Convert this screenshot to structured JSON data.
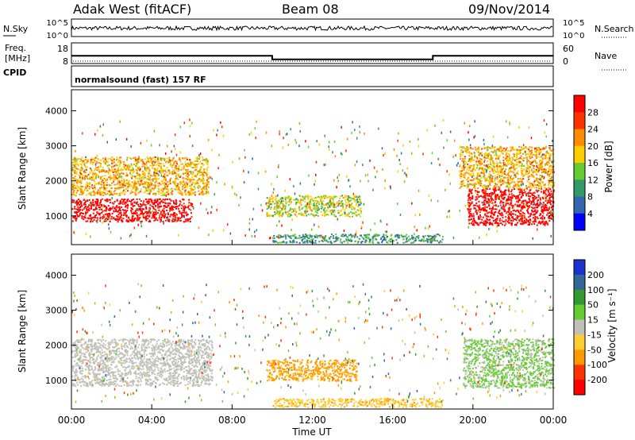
{
  "header": {
    "station": "Adak West (fitACF)",
    "beam": "Beam 08",
    "date": "09/Nov/2014"
  },
  "top_panels": {
    "nsky_label": "N.Sky",
    "nsearch_label": "N.Search",
    "noise_ticks": [
      "10^5",
      "10^0"
    ],
    "freq_label": "Freq.",
    "freq_unit": "[MHz]",
    "freq_ticks": [
      "18",
      "8"
    ],
    "nave_label": "Nave",
    "nave_ticks": [
      "60",
      "0"
    ],
    "cpid_label": "CPID",
    "cpid_text": "normalsound (fast) 157 RF",
    "freq_steps": [
      {
        "from": 0,
        "to": 10,
        "mhz": 12.5
      },
      {
        "from": 10,
        "to": 18,
        "mhz": 10.8
      },
      {
        "from": 18,
        "to": 24,
        "mhz": 12.5
      }
    ]
  },
  "chart_data": [
    {
      "type": "heatmap",
      "name": "Power",
      "ylabel": "Slant Range [km]",
      "xlabel": "Time UT",
      "xlim": [
        0,
        24
      ],
      "ylim": [
        180,
        4600
      ],
      "xticks": [
        "00:00",
        "04:00",
        "08:00",
        "12:00",
        "16:00",
        "20:00",
        "00:00"
      ],
      "yticks": [
        "1000",
        "2000",
        "3000",
        "4000"
      ],
      "colorbar_label": "Power [dB]",
      "colorbar_ticks": [
        "28",
        "24",
        "20",
        "16",
        "12",
        "8",
        "4"
      ],
      "colors": [
        "#ff0000",
        "#ff3300",
        "#ff8c00",
        "#ffcc00",
        "#66cc33",
        "#339966",
        "#3366aa",
        "#0000ff"
      ],
      "regions": [
        {
          "t0": 0,
          "t1": 6.0,
          "r0": 850,
          "r1": 1500,
          "value": 30
        },
        {
          "t0": 0,
          "t1": 6.8,
          "r0": 1600,
          "r1": 2700,
          "value": 18
        },
        {
          "t0": 9.7,
          "t1": 14.4,
          "r0": 1000,
          "r1": 1600,
          "value": 14
        },
        {
          "t0": 10.0,
          "t1": 18.5,
          "r0": 250,
          "r1": 500,
          "value": 8
        },
        {
          "t0": 19.7,
          "t1": 24,
          "r0": 750,
          "r1": 1800,
          "value": 30
        },
        {
          "t0": 19.3,
          "t1": 24,
          "r0": 1800,
          "r1": 3000,
          "value": 18
        }
      ]
    },
    {
      "type": "heatmap",
      "name": "Velocity",
      "ylabel": "Slant Range [km]",
      "xlabel": "Time UT",
      "xlim": [
        0,
        24
      ],
      "ylim": [
        180,
        4600
      ],
      "xticks": [
        "00:00",
        "04:00",
        "08:00",
        "12:00",
        "16:00",
        "20:00",
        "00:00"
      ],
      "yticks": [
        "1000",
        "2000",
        "3000",
        "4000"
      ],
      "colorbar_label": "Velocity [m s⁻¹]",
      "colorbar_ticks": [
        "200",
        "100",
        "50",
        "15",
        "-15",
        "-50",
        "-100",
        "-200"
      ],
      "colors": [
        "#1a33cc",
        "#336699",
        "#339933",
        "#66cc33",
        "#c0c0b8",
        "#ffcc33",
        "#ff9900",
        "#ff3300",
        "#ff0000"
      ],
      "regions": [
        {
          "t0": 0,
          "t1": 7.0,
          "r0": 850,
          "r1": 2200,
          "value": 0
        },
        {
          "t0": 9.7,
          "t1": 14.2,
          "r0": 1000,
          "r1": 1600,
          "value": -60
        },
        {
          "t0": 10.0,
          "t1": 18.5,
          "r0": 250,
          "r1": 500,
          "value": -40
        },
        {
          "t0": 19.5,
          "t1": 24,
          "r0": 800,
          "r1": 2200,
          "value": 20
        }
      ]
    }
  ]
}
